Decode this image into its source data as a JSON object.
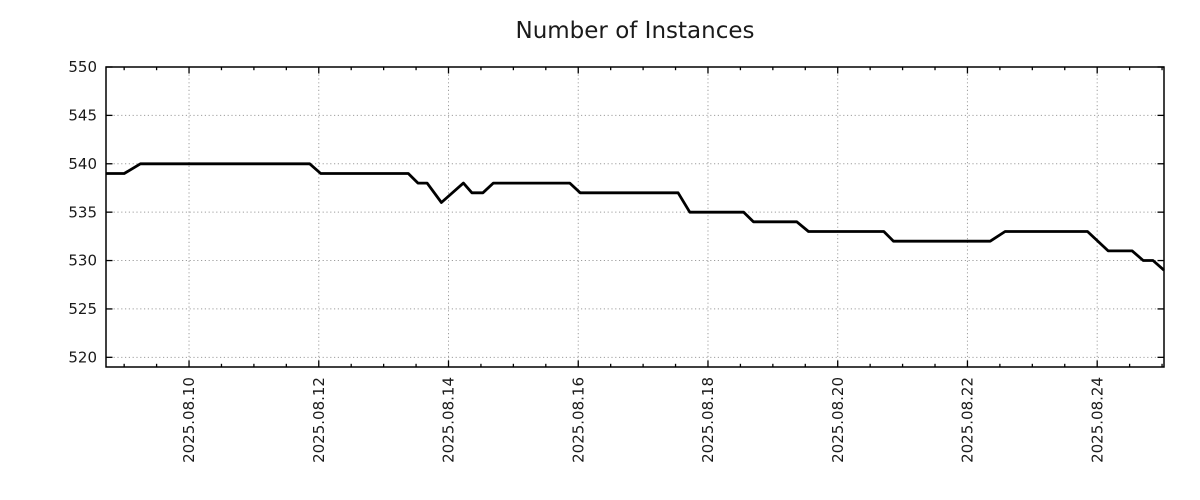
{
  "title": "Number of Instances",
  "colors": {
    "background": "#ffffff",
    "line": "#000000",
    "border": "#000000",
    "grid": "#9e9e9e",
    "text": "#1a1a1a"
  },
  "chart_data": {
    "type": "line",
    "title": "Number of Instances",
    "xlabel": "",
    "ylabel": "",
    "grid": "dotted, on both axes at major ticks",
    "legend": "none",
    "x_unit": "days since 2025.08.08 00:00",
    "x_range": [
      0.72,
      17.03
    ],
    "y_range": [
      519,
      550
    ],
    "y_ticks": [
      520,
      525,
      530,
      535,
      540,
      545,
      550
    ],
    "x_major_tick_positions": [
      2,
      4,
      6,
      8,
      10,
      12,
      14,
      16
    ],
    "x_major_tick_labels": [
      "2025.08.10",
      "2025.08.12",
      "2025.08.14",
      "2025.08.16",
      "2025.08.18",
      "2025.08.20",
      "2025.08.22",
      "2025.08.24"
    ],
    "x_minor_tick_step": 0.5,
    "tick_style": "inward, mirrored on top and right borders",
    "series": [
      {
        "name": "instances",
        "color": "#000000",
        "points": [
          [
            0.72,
            539
          ],
          [
            1.0,
            539
          ],
          [
            1.25,
            540
          ],
          [
            3.86,
            540
          ],
          [
            4.03,
            539
          ],
          [
            5.38,
            539
          ],
          [
            5.53,
            538
          ],
          [
            5.67,
            538
          ],
          [
            5.89,
            536
          ],
          [
            6.23,
            538
          ],
          [
            6.36,
            537
          ],
          [
            6.53,
            537
          ],
          [
            6.69,
            538
          ],
          [
            7.87,
            538
          ],
          [
            8.03,
            537
          ],
          [
            9.54,
            537
          ],
          [
            9.72,
            535
          ],
          [
            10.55,
            535
          ],
          [
            10.7,
            534
          ],
          [
            11.37,
            534
          ],
          [
            11.55,
            533
          ],
          [
            12.71,
            533
          ],
          [
            12.86,
            532
          ],
          [
            14.35,
            532
          ],
          [
            14.58,
            533
          ],
          [
            15.85,
            533
          ],
          [
            16.17,
            531
          ],
          [
            16.54,
            531
          ],
          [
            16.71,
            530
          ],
          [
            16.86,
            530
          ],
          [
            17.03,
            529
          ]
        ]
      }
    ]
  }
}
